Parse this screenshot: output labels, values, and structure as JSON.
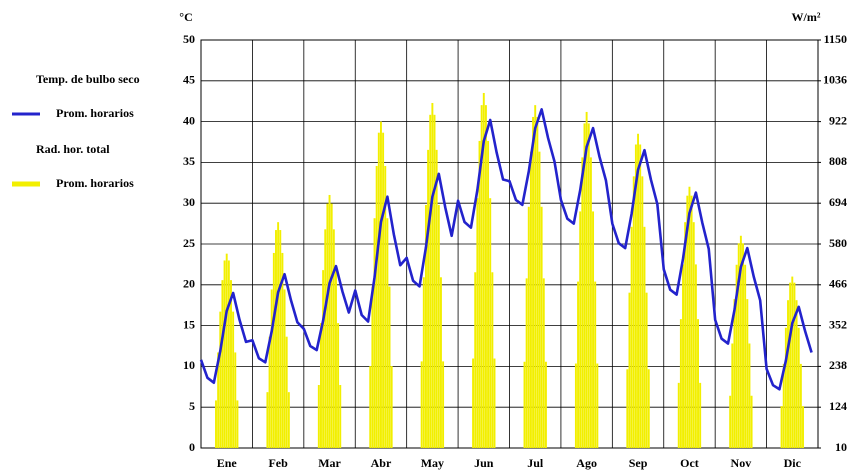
{
  "chart_data": {
    "type": "bar-line",
    "ylabel": "°C",
    "y2label": "W/m²",
    "categories": [
      "Ene",
      "Feb",
      "Mar",
      "Abr",
      "May",
      "Jun",
      "Jul",
      "Ago",
      "Sep",
      "Oct",
      "Nov",
      "Dic"
    ],
    "xlim": [
      0,
      288
    ],
    "ylim": [
      0,
      50
    ],
    "yticks": [
      0,
      5,
      10,
      15,
      20,
      25,
      30,
      35,
      40,
      45,
      50
    ],
    "y2lim": [
      10,
      1150
    ],
    "y2ticks": [
      10,
      124,
      238,
      352,
      466,
      580,
      694,
      808,
      922,
      1036,
      1150
    ],
    "grid": true,
    "legend": "left",
    "series": [
      {
        "group": "Temp. de bulbo seco",
        "name": "Prom. horarios",
        "type": "line",
        "color": "#2323cc",
        "x": [
          0,
          3,
          6,
          9,
          12,
          15,
          18,
          21,
          24,
          27,
          30,
          33,
          36,
          39,
          42,
          45,
          48,
          51,
          54,
          57,
          60,
          63,
          66,
          69,
          72,
          75,
          78,
          81,
          84,
          87,
          90,
          93,
          96,
          99,
          102,
          105,
          108,
          111,
          114,
          117,
          120,
          123,
          126,
          129,
          132,
          135,
          138,
          141,
          144,
          147,
          150,
          153,
          156,
          159,
          162,
          165,
          168,
          171,
          174,
          177,
          180,
          183,
          186,
          189,
          192,
          195,
          198,
          201,
          204,
          207,
          210,
          213,
          216,
          219,
          222,
          225,
          228,
          231,
          234,
          237,
          240,
          243,
          246,
          249,
          252,
          255,
          258,
          261,
          264,
          267,
          270,
          273,
          276,
          279,
          282,
          285
        ],
        "values": [
          10.8,
          8.6,
          8,
          11.9,
          16.8,
          19,
          15.7,
          13,
          13.2,
          11,
          10.5,
          14.3,
          19.1,
          21.3,
          18.1,
          15.4,
          14.6,
          12.5,
          12,
          15.6,
          20.2,
          22.3,
          19.2,
          16.6,
          19.3,
          16.3,
          15.5,
          20.9,
          27.7,
          30.8,
          26.2,
          22.4,
          23.3,
          20.5,
          19.8,
          24.6,
          30.8,
          33.6,
          29.5,
          26,
          30.3,
          27.7,
          27,
          31.6,
          37.6,
          40.2,
          36.2,
          32.9,
          32.7,
          30.4,
          29.8,
          33.9,
          39.2,
          41.5,
          38,
          35.1,
          30.4,
          28.1,
          27.5,
          31.6,
          36.9,
          39.2,
          35.7,
          32.8,
          27.5,
          25.1,
          24.5,
          28.7,
          34.1,
          36.5,
          32.9,
          29.9,
          21.9,
          19.4,
          18.8,
          23.2,
          28.8,
          31.3,
          27.6,
          24.4,
          15.7,
          13.4,
          12.8,
          16.9,
          22.2,
          24.5,
          21,
          18.1,
          9.7,
          7.7,
          7.2,
          10.7,
          15.3,
          17.3,
          14.3,
          11.7
        ]
      },
      {
        "group": "Rad. hor. total",
        "name": "Prom. horarios",
        "type": "bar",
        "axis": "y2",
        "color": "#f2ef00",
        "x": [
          7,
          8,
          9,
          10,
          11,
          12,
          13,
          14,
          15,
          16,
          17,
          31,
          32,
          33,
          34,
          35,
          36,
          37,
          38,
          39,
          40,
          41,
          55,
          56,
          57,
          58,
          59,
          60,
          61,
          62,
          63,
          64,
          65,
          79,
          80,
          81,
          82,
          83,
          84,
          85,
          86,
          87,
          88,
          89,
          103,
          104,
          105,
          106,
          107,
          108,
          109,
          110,
          111,
          112,
          113,
          127,
          128,
          129,
          130,
          131,
          132,
          133,
          134,
          135,
          136,
          137,
          151,
          152,
          153,
          154,
          155,
          156,
          157,
          158,
          159,
          160,
          161,
          175,
          176,
          177,
          178,
          179,
          180,
          181,
          182,
          183,
          184,
          185,
          199,
          200,
          201,
          202,
          203,
          204,
          205,
          206,
          207,
          208,
          209,
          223,
          224,
          225,
          226,
          227,
          228,
          229,
          230,
          231,
          232,
          233,
          247,
          248,
          249,
          250,
          251,
          252,
          253,
          254,
          255,
          256,
          257,
          271,
          272,
          273,
          274,
          275,
          276,
          277,
          278,
          279,
          280,
          281
        ],
        "values": [
          143,
          277,
          391,
          479,
          534,
          553,
          534,
          479,
          391,
          277,
          143,
          166,
          321,
          453,
          555,
          619,
          641,
          619,
          555,
          453,
          321,
          166,
          186,
          359,
          507,
          621,
          693,
          717,
          693,
          621,
          507,
          359,
          186,
          239,
          461,
          652,
          798,
          891,
          922,
          891,
          798,
          652,
          461,
          239,
          252,
          487,
          689,
          843,
          941,
          974,
          941,
          843,
          689,
          487,
          252,
          260,
          501,
          708,
          868,
          968,
          1002,
          968,
          868,
          708,
          501,
          260,
          251,
          484,
          684,
          838,
          935,
          968,
          935,
          838,
          684,
          484,
          251,
          246,
          475,
          671,
          822,
          917,
          949,
          917,
          822,
          671,
          475,
          246,
          230,
          444,
          628,
          769,
          858,
          888,
          858,
          769,
          628,
          444,
          230,
          192,
          370,
          523,
          641,
          715,
          740,
          715,
          641,
          523,
          370,
          192,
          156,
          302,
          426,
          522,
          582,
          603,
          582,
          522,
          426,
          302,
          156,
          127,
          245,
          346,
          423,
          472,
          489,
          472,
          423,
          346,
          245,
          127
        ]
      }
    ]
  }
}
